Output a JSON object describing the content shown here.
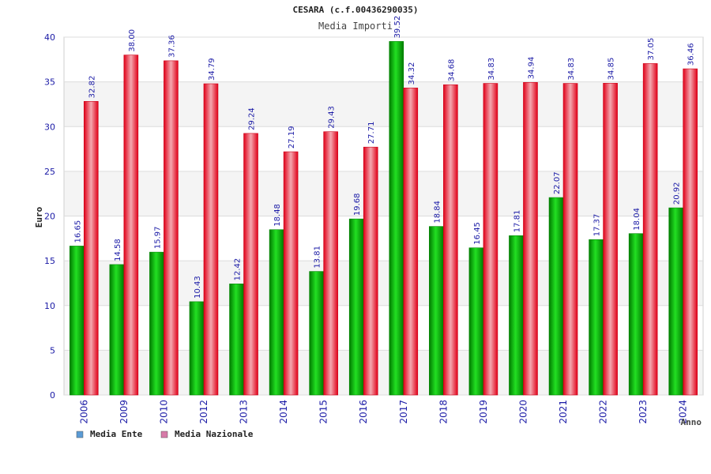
{
  "chart_data": {
    "type": "bar",
    "title": "CESARA (c.f.00436290035)",
    "subtitle": "Media Importi",
    "xlabel": "Anno",
    "ylabel": "Euro",
    "ylim": [
      0,
      40
    ],
    "yticks": [
      0,
      5,
      10,
      15,
      20,
      25,
      30,
      35,
      40
    ],
    "grid": true,
    "legend_position": "bottom-left",
    "categories": [
      "2006",
      "2009",
      "2010",
      "2012",
      "2013",
      "2014",
      "2015",
      "2016",
      "2017",
      "2018",
      "2019",
      "2020",
      "2021",
      "2022",
      "2023",
      "2024"
    ],
    "series": [
      {
        "name": "Media Ente",
        "legend_color": "#5b9bd5",
        "bar_color": "#00c000",
        "values": [
          16.65,
          14.58,
          15.97,
          10.43,
          12.42,
          18.48,
          13.81,
          19.68,
          39.52,
          18.84,
          16.45,
          17.81,
          22.07,
          17.37,
          18.04,
          20.92
        ],
        "labels": [
          "16.65",
          "14.58",
          "15.97",
          "10.43",
          "12.42",
          "18.48",
          "13.81",
          "19.68",
          "39.52",
          "18.84",
          "16.45",
          "17.81",
          "22.07",
          "17.37",
          "18.04",
          "20.92"
        ]
      },
      {
        "name": "Media Nazionale",
        "legend_color": "#d77aa8",
        "bar_color": "#e8102a",
        "values": [
          32.82,
          38.0,
          37.36,
          34.79,
          29.24,
          27.19,
          29.43,
          27.71,
          34.32,
          34.68,
          34.83,
          34.94,
          34.83,
          34.85,
          37.05,
          36.46
        ],
        "labels": [
          "32.82",
          "38.00",
          "37.36",
          "34.79",
          "29.24",
          "27.19",
          "29.43",
          "27.71",
          "34.32",
          "34.68",
          "34.83",
          "34.94",
          "34.83",
          "34.85",
          "37.05",
          "36.46"
        ]
      }
    ]
  }
}
